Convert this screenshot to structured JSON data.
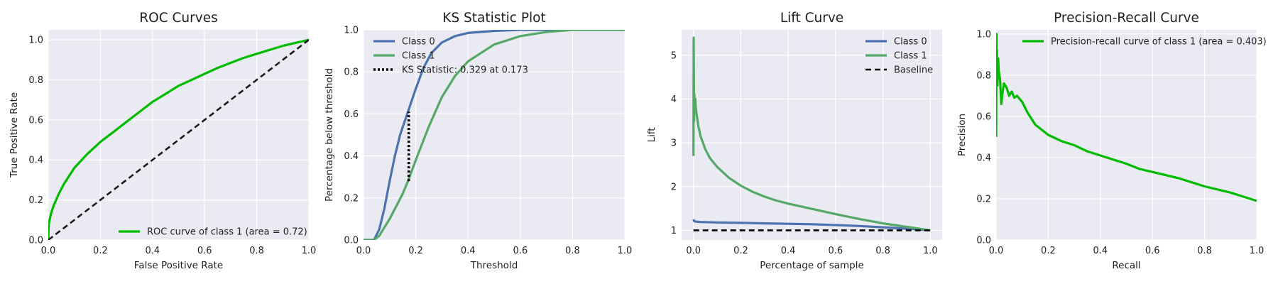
{
  "chart_data": [
    {
      "type": "line",
      "title": "ROC Curves",
      "xlabel": "False Positive Rate",
      "ylabel": "True Positive Rate",
      "xlim": [
        0,
        1
      ],
      "ylim": [
        0,
        1.05
      ],
      "xticks": [
        "0.0",
        "0.2",
        "0.4",
        "0.6",
        "0.8",
        "1.0"
      ],
      "yticks": [
        "0.0",
        "0.2",
        "0.4",
        "0.6",
        "0.8",
        "1.0"
      ],
      "grid": true,
      "legend_position": "lower-right",
      "series": [
        {
          "name": "ROC curve of class 1 (area = 0.72)",
          "color": "#00bb00",
          "style": "solid",
          "x": [
            0,
            0.002,
            0.01,
            0.02,
            0.04,
            0.06,
            0.08,
            0.1,
            0.15,
            0.2,
            0.25,
            0.3,
            0.35,
            0.4,
            0.45,
            0.5,
            0.55,
            0.6,
            0.65,
            0.7,
            0.75,
            0.8,
            0.85,
            0.9,
            0.95,
            1.0
          ],
          "y": [
            0,
            0.08,
            0.13,
            0.17,
            0.23,
            0.28,
            0.32,
            0.36,
            0.43,
            0.49,
            0.54,
            0.59,
            0.64,
            0.69,
            0.73,
            0.77,
            0.8,
            0.83,
            0.86,
            0.885,
            0.91,
            0.93,
            0.95,
            0.97,
            0.985,
            1.0
          ]
        },
        {
          "name": "",
          "color": "#1a1a1a",
          "style": "dashed",
          "x": [
            0,
            1
          ],
          "y": [
            0,
            1
          ]
        }
      ]
    },
    {
      "type": "line",
      "title": "KS Statistic Plot",
      "xlabel": "Threshold",
      "ylabel": "Percentage below threshold",
      "xlim": [
        0,
        1
      ],
      "ylim": [
        0,
        1
      ],
      "xticks": [
        "0.0",
        "0.2",
        "0.4",
        "0.6",
        "0.8",
        "1.0"
      ],
      "yticks": [
        "0.0",
        "0.2",
        "0.4",
        "0.6",
        "0.8",
        "1.0"
      ],
      "grid": true,
      "legend_position": "upper-left",
      "series": [
        {
          "name": "Class 0",
          "color": "#4c72b0",
          "style": "solid",
          "x": [
            0,
            0.04,
            0.06,
            0.08,
            0.1,
            0.12,
            0.14,
            0.17,
            0.2,
            0.23,
            0.26,
            0.3,
            0.35,
            0.4,
            0.5,
            0.6,
            0.7,
            1.0
          ],
          "y": [
            0,
            0.0,
            0.05,
            0.15,
            0.28,
            0.4,
            0.5,
            0.61,
            0.72,
            0.82,
            0.89,
            0.94,
            0.97,
            0.985,
            0.995,
            1.0,
            1.0,
            1.0
          ]
        },
        {
          "name": "Class 1",
          "color": "#55a868",
          "style": "solid",
          "x": [
            0,
            0.04,
            0.06,
            0.1,
            0.15,
            0.17,
            0.2,
            0.25,
            0.3,
            0.35,
            0.4,
            0.5,
            0.6,
            0.7,
            0.8,
            1.0
          ],
          "y": [
            0,
            0.0,
            0.02,
            0.1,
            0.22,
            0.28,
            0.38,
            0.54,
            0.68,
            0.78,
            0.85,
            0.93,
            0.97,
            0.99,
            1.0,
            1.0
          ]
        },
        {
          "name": "KS Statistic: 0.329 at 0.173",
          "color": "#000000",
          "style": "dotted",
          "x": [
            0.173,
            0.173
          ],
          "y": [
            0.28,
            0.61
          ]
        }
      ]
    },
    {
      "type": "line",
      "title": "Lift Curve",
      "xlabel": "Percentage of sample",
      "ylabel": "Lift",
      "xlim": [
        -0.05,
        1.05
      ],
      "ylim": [
        0.78,
        5.58
      ],
      "xticks": [
        "0.0",
        "0.2",
        "0.4",
        "0.6",
        "0.8",
        "1.0"
      ],
      "yticks": [
        "1",
        "2",
        "3",
        "4",
        "5"
      ],
      "grid": true,
      "legend_position": "upper-right",
      "series": [
        {
          "name": "Class 0",
          "color": "#4c72b0",
          "style": "solid",
          "x": [
            0,
            0.003,
            0.01,
            0.03,
            0.1,
            0.2,
            0.3,
            0.4,
            0.5,
            0.6,
            0.7,
            0.8,
            0.9,
            1.0
          ],
          "y": [
            1.25,
            1.21,
            1.2,
            1.19,
            1.18,
            1.17,
            1.16,
            1.15,
            1.14,
            1.12,
            1.1,
            1.07,
            1.04,
            1.0
          ]
        },
        {
          "name": "Class 1",
          "color": "#55a868",
          "style": "solid",
          "x": [
            0,
            0.001,
            0.002,
            0.003,
            0.004,
            0.006,
            0.008,
            0.01,
            0.015,
            0.02,
            0.03,
            0.05,
            0.07,
            0.1,
            0.15,
            0.2,
            0.25,
            0.3,
            0.35,
            0.4,
            0.5,
            0.6,
            0.7,
            0.8,
            0.9,
            1.0
          ],
          "y": [
            2.7,
            5.4,
            4.5,
            3.5,
            4.1,
            3.8,
            4.0,
            3.8,
            3.6,
            3.4,
            3.15,
            2.85,
            2.65,
            2.45,
            2.2,
            2.02,
            1.88,
            1.77,
            1.68,
            1.61,
            1.49,
            1.37,
            1.26,
            1.16,
            1.08,
            1.0
          ]
        },
        {
          "name": "Baseline",
          "color": "#000000",
          "style": "dashed",
          "x": [
            0,
            1
          ],
          "y": [
            1,
            1
          ]
        }
      ]
    },
    {
      "type": "line",
      "title": "Precision-Recall Curve",
      "xlabel": "Recall",
      "ylabel": "Precision",
      "xlim": [
        0,
        1
      ],
      "ylim": [
        0,
        1.02
      ],
      "xticks": [
        "0.0",
        "0.2",
        "0.4",
        "0.6",
        "0.8",
        "1.0"
      ],
      "yticks": [
        "0.0",
        "0.2",
        "0.4",
        "0.6",
        "0.8",
        "1.0"
      ],
      "grid": true,
      "legend_position": "upper-right",
      "series": [
        {
          "name": "Precision-recall curve of class 1 (area = 0.403)",
          "color": "#00bb00",
          "style": "solid",
          "x": [
            0,
            0.001,
            0.002,
            0.003,
            0.005,
            0.008,
            0.01,
            0.015,
            0.02,
            0.025,
            0.03,
            0.04,
            0.05,
            0.06,
            0.07,
            0.08,
            0.1,
            0.12,
            0.15,
            0.2,
            0.25,
            0.3,
            0.35,
            0.4,
            0.45,
            0.5,
            0.55,
            0.6,
            0.65,
            0.7,
            0.75,
            0.8,
            0.85,
            0.9,
            0.95,
            1.0
          ],
          "y": [
            0.5,
            1.0,
            0.8,
            0.92,
            0.75,
            0.88,
            0.82,
            0.78,
            0.66,
            0.72,
            0.76,
            0.74,
            0.7,
            0.72,
            0.69,
            0.7,
            0.67,
            0.62,
            0.56,
            0.51,
            0.48,
            0.46,
            0.43,
            0.41,
            0.39,
            0.37,
            0.345,
            0.33,
            0.315,
            0.3,
            0.28,
            0.26,
            0.245,
            0.23,
            0.21,
            0.19
          ]
        }
      ]
    }
  ]
}
